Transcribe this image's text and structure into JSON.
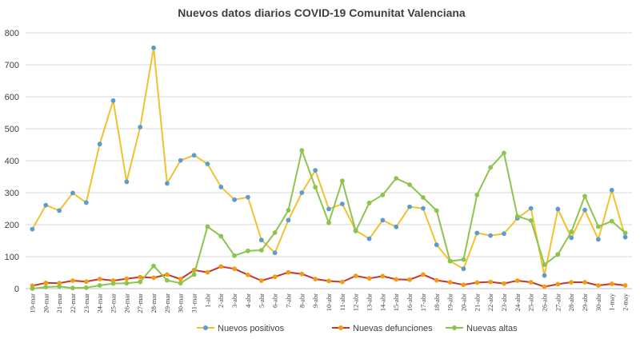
{
  "chart_data": {
    "type": "line",
    "title": "Nuevos datos diarios COVID-19 Comunitat Valenciana",
    "xlabel": "",
    "ylabel": "",
    "ylim": [
      0,
      800
    ],
    "yticks": [
      0,
      100,
      200,
      300,
      400,
      500,
      600,
      700,
      800
    ],
    "grid": true,
    "legend_position": "bottom",
    "categories": [
      "19-mar",
      "20-mar",
      "21-mar",
      "22-mar",
      "23-mar",
      "24-mar",
      "25-mar",
      "26-mar",
      "27-mar",
      "28-mar",
      "29-mar",
      "30-mar",
      "31-mar",
      "1-abr",
      "2-abr",
      "3-abr",
      "4-abr",
      "5-abr",
      "6-abr",
      "7-abr",
      "8-abr",
      "9-abr",
      "10-abr",
      "11-abr",
      "12-abr",
      "13-abr",
      "14-abr",
      "15-abr",
      "16-abr",
      "17-abr",
      "18-abr",
      "19-abr",
      "20-abr",
      "21-abr",
      "22-abr",
      "23-abr",
      "24-abr",
      "25-abr",
      "26-abr",
      "27-abr",
      "28-abr",
      "29-abr",
      "30-abr",
      "1-may",
      "2-may"
    ],
    "series": [
      {
        "name": "Nuevos positivos",
        "line_color": "#f2c12e",
        "marker_color": "#5b9bd5",
        "values": [
          186,
          261,
          244,
          299,
          269,
          452,
          588,
          334,
          505,
          753,
          329,
          401,
          417,
          390,
          318,
          278,
          286,
          152,
          112,
          214,
          300,
          370,
          249,
          265,
          182,
          156,
          214,
          193,
          256,
          251,
          137,
          86,
          62,
          174,
          166,
          172,
          220,
          251,
          41,
          249,
          159,
          246,
          154,
          308,
          161
        ]
      },
      {
        "name": "Nuevas defunciones",
        "line_color": "#c0392b",
        "marker_color": "#f39c12",
        "values": [
          9,
          18,
          17,
          25,
          22,
          30,
          25,
          31,
          36,
          34,
          44,
          30,
          58,
          51,
          69,
          62,
          43,
          25,
          37,
          51,
          46,
          30,
          24,
          21,
          40,
          32,
          39,
          29,
          28,
          44,
          26,
          20,
          12,
          19,
          21,
          16,
          25,
          20,
          6,
          14,
          20,
          20,
          10,
          15,
          10
        ]
      },
      {
        "name": "Nuevas altas",
        "line_color": "#8dc44e",
        "marker_color": "#8dc44e",
        "values": [
          0,
          5,
          7,
          2,
          3,
          10,
          16,
          17,
          21,
          71,
          26,
          17,
          44,
          194,
          164,
          103,
          118,
          120,
          175,
          245,
          432,
          317,
          206,
          337,
          180,
          268,
          293,
          345,
          325,
          285,
          244,
          86,
          91,
          293,
          379,
          424,
          226,
          213,
          75,
          107,
          178,
          289,
          194,
          211,
          174
        ]
      }
    ]
  }
}
